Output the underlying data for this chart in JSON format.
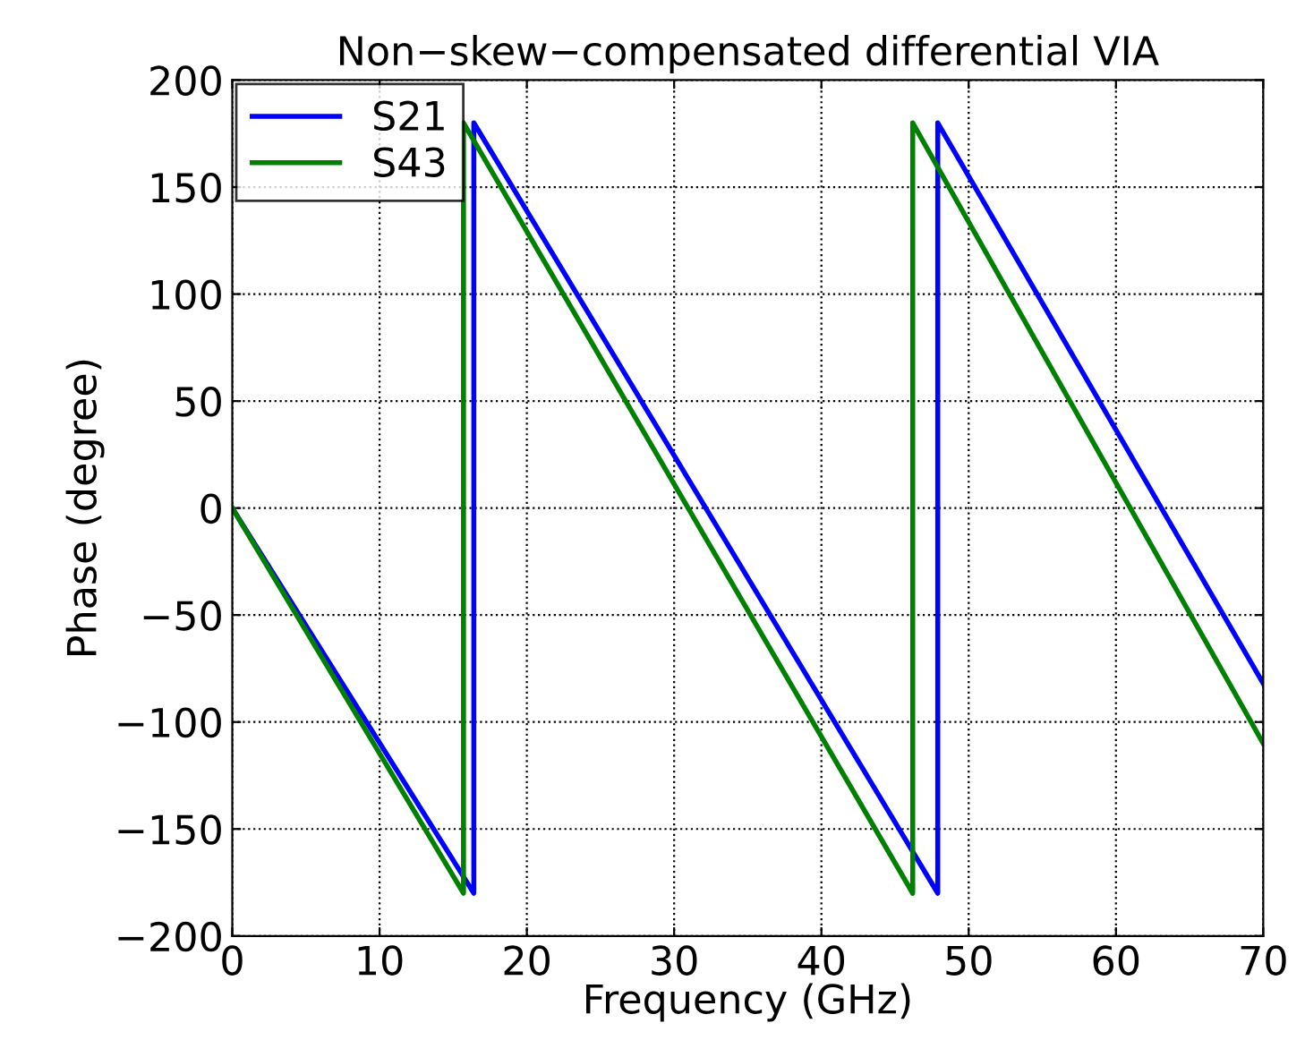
{
  "chart_data": {
    "type": "line",
    "title": "Non−skew−compensated differential VIA",
    "xlabel": "Frequency (GHz)",
    "ylabel": "Phase (degree)",
    "series": [
      {
        "name": "S21",
        "color": "#0000ff",
        "x": [
          0,
          16.4,
          16.4,
          47.9,
          47.9,
          70
        ],
        "values": [
          0,
          -180,
          180,
          -180,
          180,
          -82
        ]
      },
      {
        "name": "S43",
        "color": "#008000",
        "x": [
          0,
          15.7,
          15.7,
          46.2,
          46.2,
          70
        ],
        "values": [
          0,
          -180,
          180,
          -180,
          180,
          -110
        ]
      }
    ],
    "xlim": [
      0,
      70
    ],
    "xticks": [
      0,
      10,
      20,
      30,
      40,
      50,
      60,
      70
    ],
    "ylim": [
      -200,
      200
    ],
    "yticks": [
      -200,
      -150,
      -100,
      -50,
      0,
      50,
      100,
      150,
      200
    ],
    "grid": true,
    "legend": "top left",
    "line_style": "solid",
    "marker": "none"
  }
}
